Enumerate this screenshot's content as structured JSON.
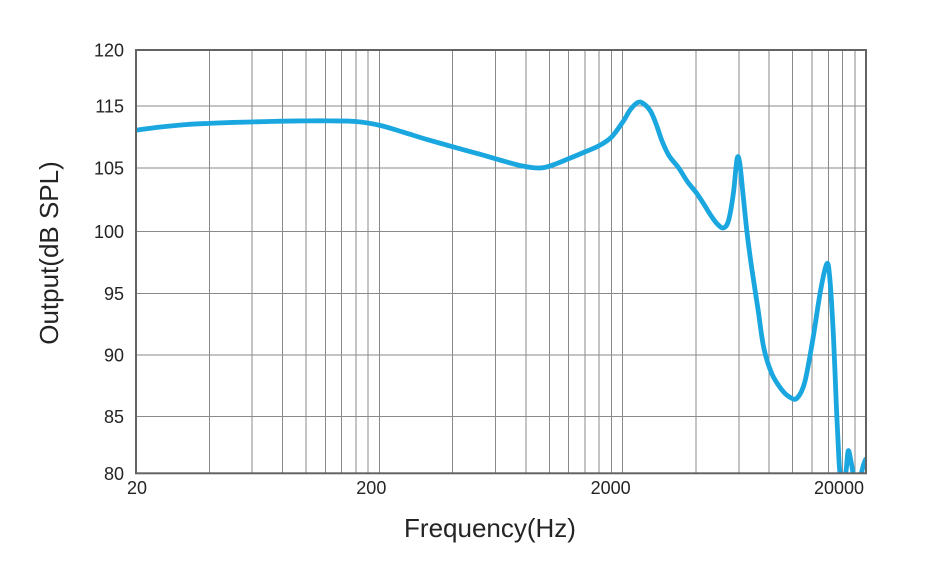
{
  "chart_data": {
    "type": "line",
    "title": "",
    "xlabel": "Frequency(Hz)",
    "ylabel": "Output(dB SPL)",
    "x_scale": "log",
    "x_min": 20,
    "x_max": 20000,
    "x_major_ticks": [
      20,
      200,
      2000,
      20000
    ],
    "x_tick_labels": [
      "20",
      "200",
      "2000",
      "20000"
    ],
    "x_minor_gridlines": [
      40,
      60,
      80,
      100,
      120,
      140,
      160,
      180,
      400,
      600,
      800,
      1000,
      1200,
      1400,
      1600,
      1800,
      4000,
      6000,
      8000,
      10000,
      12000,
      14000,
      16000,
      18000
    ],
    "y_tick_labels_top_to_bottom": [
      "120",
      "115",
      "105",
      "100",
      "95",
      "90",
      "85",
      "80"
    ],
    "y_top_value": 120,
    "y_bottom_value": 80,
    "y_axis_note": "tick labels equally spaced exactly as printed (no 110 label on original)",
    "grid": true,
    "legend": "none",
    "colors": {
      "line": "#1AA7E0",
      "grid": "#8A8A8A",
      "border": "#636363",
      "text": "#242424",
      "background": "#FFFFFF"
    },
    "series": [
      {
        "name": "Output (dB SPL)",
        "points": [
          [
            20,
            111.1
          ],
          [
            25,
            111.6
          ],
          [
            32,
            112.0
          ],
          [
            40,
            112.2
          ],
          [
            50,
            112.35
          ],
          [
            63,
            112.45
          ],
          [
            80,
            112.55
          ],
          [
            100,
            112.6
          ],
          [
            125,
            112.6
          ],
          [
            160,
            112.5
          ],
          [
            200,
            111.9
          ],
          [
            250,
            110.8
          ],
          [
            320,
            109.5
          ],
          [
            420,
            108.2
          ],
          [
            520,
            107.2
          ],
          [
            650,
            106.1
          ],
          [
            780,
            105.3
          ],
          [
            900,
            105.0
          ],
          [
            1000,
            105.3
          ],
          [
            1200,
            106.5
          ],
          [
            1400,
            107.6
          ],
          [
            1600,
            108.6
          ],
          [
            1800,
            110.0
          ],
          [
            2000,
            112.4
          ],
          [
            2150,
            114.4
          ],
          [
            2300,
            115.3
          ],
          [
            2420,
            115.25
          ],
          [
            2600,
            114.2
          ],
          [
            2750,
            112.0
          ],
          [
            2900,
            109.4
          ],
          [
            3100,
            107.0
          ],
          [
            3400,
            105.0
          ],
          [
            3700,
            103.9
          ],
          [
            4000,
            103.1
          ],
          [
            4300,
            102.2
          ],
          [
            4600,
            101.3
          ],
          [
            4900,
            100.6
          ],
          [
            5200,
            100.3
          ],
          [
            5450,
            100.9
          ],
          [
            5700,
            103.0
          ],
          [
            5900,
            106.4
          ],
          [
            6050,
            105.9
          ],
          [
            6250,
            102.9
          ],
          [
            6500,
            99.8
          ],
          [
            6800,
            96.9
          ],
          [
            7200,
            93.7
          ],
          [
            7600,
            90.6
          ],
          [
            8200,
            88.5
          ],
          [
            9000,
            87.2
          ],
          [
            9700,
            86.6
          ],
          [
            10400,
            86.5
          ],
          [
            11200,
            87.8
          ],
          [
            12100,
            91.3
          ],
          [
            13000,
            95.2
          ],
          [
            13800,
            97.4
          ],
          [
            14200,
            96.2
          ],
          [
            14700,
            91.5
          ],
          [
            15100,
            86.0
          ],
          [
            15500,
            81.0
          ],
          [
            15800,
            79.3
          ],
          [
            16300,
            79.3
          ],
          [
            16600,
            80.4
          ],
          [
            16900,
            82.0
          ],
          [
            17300,
            81.2
          ],
          [
            17700,
            80.0
          ],
          [
            18000,
            79.2
          ],
          [
            18800,
            79.2
          ],
          [
            19100,
            79.9
          ],
          [
            19500,
            80.7
          ],
          [
            19900,
            81.2
          ],
          [
            20000,
            81.2
          ]
        ]
      }
    ]
  }
}
